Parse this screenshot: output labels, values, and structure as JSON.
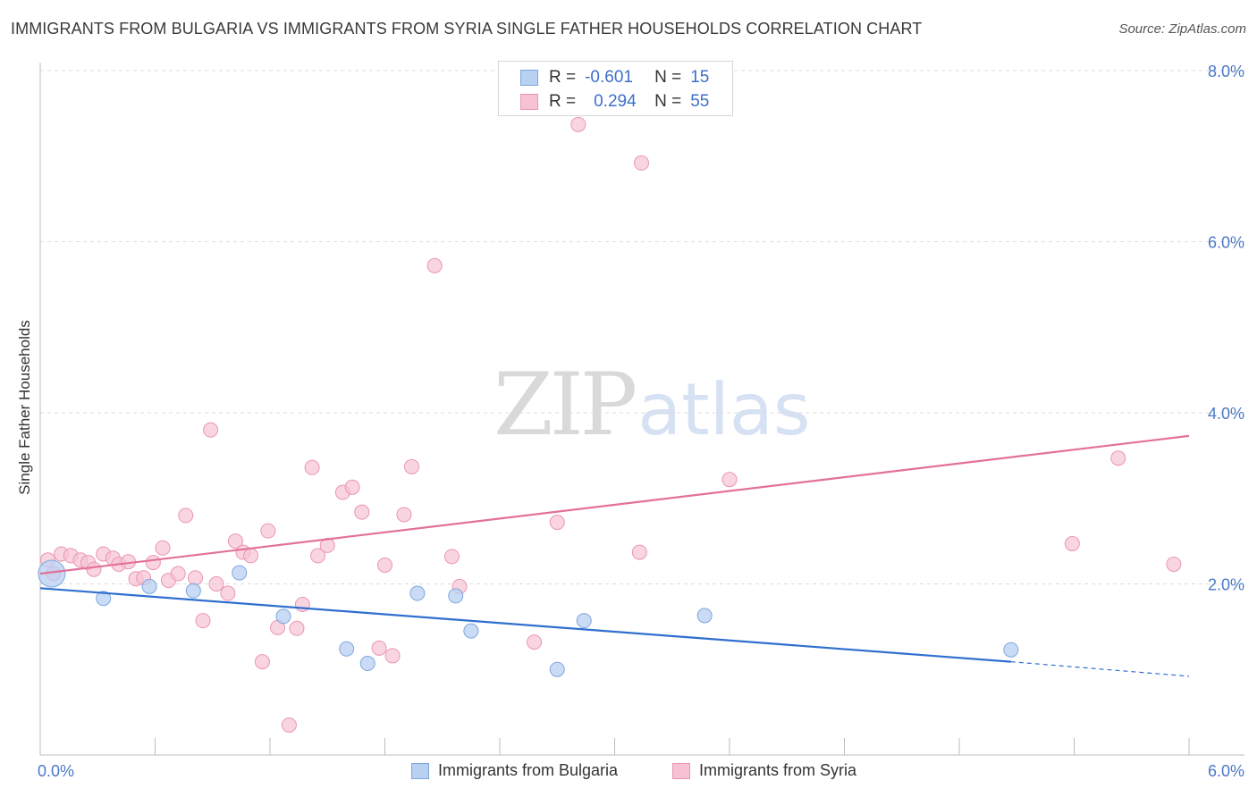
{
  "title": "IMMIGRANTS FROM BULGARIA VS IMMIGRANTS FROM SYRIA SINGLE FATHER HOUSEHOLDS CORRELATION CHART",
  "source": "Source: ZipAtlas.com",
  "watermark": {
    "zip": "ZIP",
    "atlas": "atlas"
  },
  "legend": {
    "rows": [
      {
        "r_label": "R =",
        "r_value": "-0.601",
        "n_label": "N =",
        "n_value": "15"
      },
      {
        "r_label": "R =",
        "r_value": "0.294",
        "n_label": "N =",
        "n_value": "55"
      }
    ]
  },
  "bottom_legend": {
    "bulgaria": "Immigrants from Bulgaria",
    "syria": "Immigrants from Syria"
  },
  "colors": {
    "bulgaria_fill": "#b8d0f1",
    "bulgaria_stroke": "#7ea6dd",
    "bulgaria_line": "#2f6fce",
    "syria_fill": "#f7c3d4",
    "syria_stroke": "#eb95b3",
    "syria_line": "#e3709a",
    "tick_label": "#4a79c8",
    "grid": "#dcdcdc"
  },
  "chart_data": {
    "type": "scatter",
    "title": "IMMIGRANTS FROM BULGARIA VS IMMIGRANTS FROM SYRIA SINGLE FATHER HOUSEHOLDS CORRELATION CHART",
    "xlabel": "",
    "ylabel": "Single Father Households",
    "xlim": [
      0,
      6
    ],
    "ylim": [
      0,
      8.3
    ],
    "x_tick_labels": [
      {
        "value": 0,
        "label": "0.0%"
      },
      {
        "value": 6,
        "label": "6.0%"
      }
    ],
    "x_minor_ticks": [
      0,
      0.6,
      1.2,
      1.8,
      2.4,
      3.0,
      3.6,
      4.2,
      4.8,
      5.4,
      6.0
    ],
    "y_ticks": [
      {
        "value": 2,
        "label": "2.0%"
      },
      {
        "value": 4,
        "label": "4.0%"
      },
      {
        "value": 6,
        "label": "6.0%"
      },
      {
        "value": 8,
        "label": "8.0%"
      }
    ],
    "grid": "horizontal dashed",
    "legend_position": "top-center",
    "series": [
      {
        "name": "Immigrants from Bulgaria",
        "R": -0.601,
        "N": 15,
        "points": [
          [
            0.06,
            2.12
          ],
          [
            0.33,
            1.83
          ],
          [
            0.57,
            1.97
          ],
          [
            0.8,
            1.92
          ],
          [
            1.04,
            2.13
          ],
          [
            1.27,
            1.62
          ],
          [
            1.6,
            1.24
          ],
          [
            1.71,
            1.07
          ],
          [
            1.97,
            1.89
          ],
          [
            2.17,
            1.86
          ],
          [
            2.25,
            1.45
          ],
          [
            2.7,
            1.0
          ],
          [
            2.84,
            1.57
          ],
          [
            3.47,
            1.63
          ],
          [
            5.07,
            1.23
          ]
        ],
        "trend": {
          "x0": 0,
          "y0": 1.95,
          "x1": 5.07,
          "y1": 1.09,
          "dash_x1": 6.0,
          "dash_y1": 0.92
        }
      },
      {
        "name": "Immigrants from Syria",
        "R": 0.294,
        "N": 55,
        "points": [
          [
            0.04,
            2.28
          ],
          [
            0.07,
            2.12
          ],
          [
            0.11,
            2.35
          ],
          [
            0.16,
            2.33
          ],
          [
            0.21,
            2.28
          ],
          [
            0.25,
            2.25
          ],
          [
            0.28,
            2.17
          ],
          [
            0.33,
            2.35
          ],
          [
            0.38,
            2.3
          ],
          [
            0.41,
            2.23
          ],
          [
            0.46,
            2.26
          ],
          [
            0.5,
            2.06
          ],
          [
            0.54,
            2.07
          ],
          [
            0.59,
            2.25
          ],
          [
            0.64,
            2.42
          ],
          [
            0.67,
            2.04
          ],
          [
            0.72,
            2.12
          ],
          [
            0.76,
            2.8
          ],
          [
            0.81,
            2.07
          ],
          [
            0.85,
            1.57
          ],
          [
            0.89,
            3.8
          ],
          [
            0.92,
            2.0
          ],
          [
            0.98,
            1.89
          ],
          [
            1.02,
            2.5
          ],
          [
            1.06,
            2.37
          ],
          [
            1.1,
            2.33
          ],
          [
            1.16,
            1.09
          ],
          [
            1.19,
            2.62
          ],
          [
            1.24,
            1.49
          ],
          [
            1.3,
            0.35
          ],
          [
            1.34,
            1.48
          ],
          [
            1.37,
            1.76
          ],
          [
            1.42,
            3.36
          ],
          [
            1.45,
            2.33
          ],
          [
            1.5,
            2.45
          ],
          [
            1.58,
            3.07
          ],
          [
            1.63,
            3.13
          ],
          [
            1.68,
            2.84
          ],
          [
            1.77,
            1.25
          ],
          [
            1.8,
            2.22
          ],
          [
            1.84,
            1.16
          ],
          [
            1.9,
            2.81
          ],
          [
            1.94,
            3.37
          ],
          [
            2.06,
            5.72
          ],
          [
            2.15,
            2.32
          ],
          [
            2.19,
            1.97
          ],
          [
            2.58,
            1.32
          ],
          [
            2.7,
            2.72
          ],
          [
            2.81,
            7.37
          ],
          [
            3.13,
            2.37
          ],
          [
            3.14,
            6.92
          ],
          [
            3.6,
            3.22
          ],
          [
            5.39,
            2.47
          ],
          [
            5.63,
            3.47
          ],
          [
            5.92,
            2.23
          ]
        ],
        "trend": {
          "x0": 0,
          "y0": 2.12,
          "x1": 6.0,
          "y1": 3.73
        }
      }
    ]
  }
}
